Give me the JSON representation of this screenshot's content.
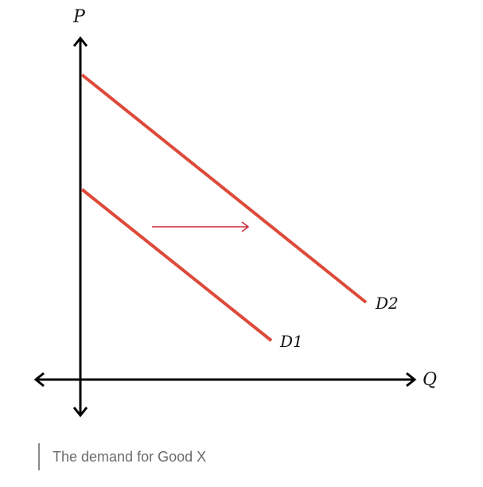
{
  "axes": {
    "y_label": "P",
    "x_label": "Q"
  },
  "curves": [
    {
      "name": "D1",
      "label": "D1"
    },
    {
      "name": "D2",
      "label": "D2"
    }
  ],
  "shift_arrow": {
    "direction": "right"
  },
  "colors": {
    "curve": "#dd4a3a",
    "arrow": "#cc2b3b",
    "axis": "#000000"
  },
  "caption": "The demand for Good X"
}
